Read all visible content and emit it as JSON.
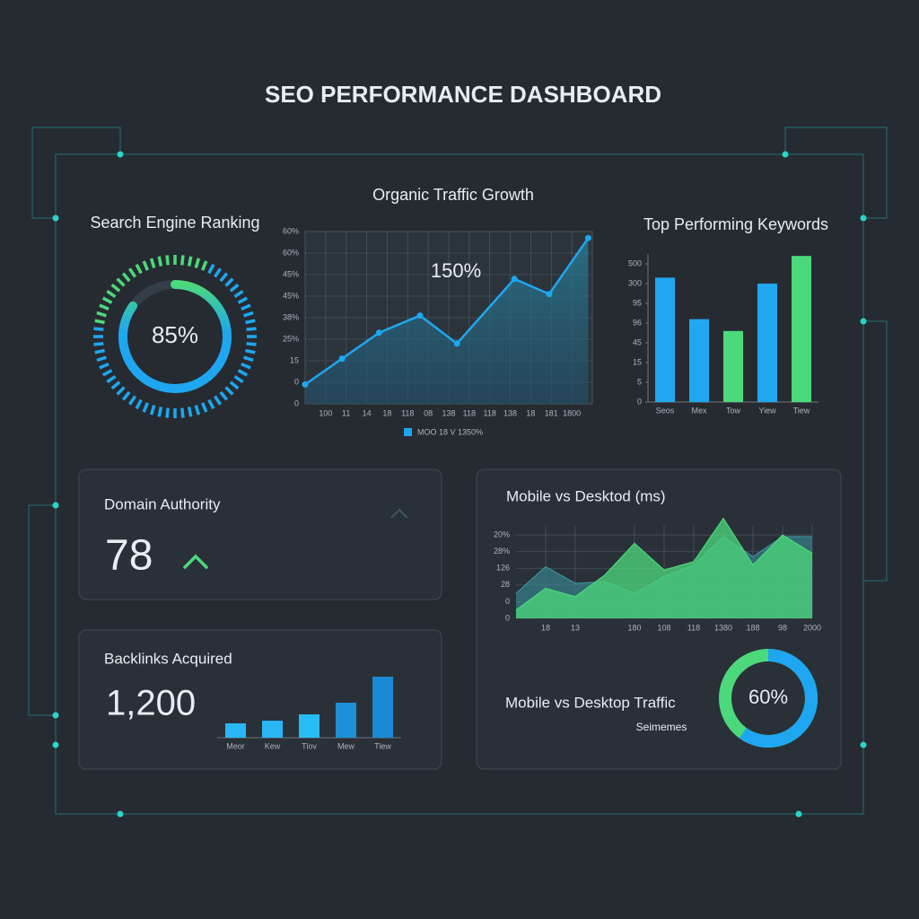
{
  "title": "SEO PERFORMANCE DASHBOARD",
  "chart_data": [
    {
      "type": "gauge",
      "title": "Search Engine Ranking",
      "value": 85,
      "value_label": "85%",
      "ylim": [
        0,
        100
      ],
      "color": "#1ea7f0",
      "accent_color": "#4cd97b"
    },
    {
      "type": "line",
      "title": "Organic Traffic Growth",
      "annotation": "150%",
      "legend": "MOO 18 V 1350%",
      "x": [
        0,
        1.8,
        3.6,
        5.6,
        7.4,
        10.2,
        11.9,
        13.8
      ],
      "values": [
        0.9,
        2.1,
        3.3,
        4.1,
        2.8,
        5.8,
        5.1,
        7.7
      ],
      "color": "#1ea7f0",
      "xlim": [
        0,
        14
      ],
      "xticks": [
        {
          "value": 1,
          "label": "100"
        },
        {
          "value": 2,
          "label": "11"
        },
        {
          "value": 3,
          "label": "14"
        },
        {
          "value": 4,
          "label": "18"
        },
        {
          "value": 5,
          "label": "118"
        },
        {
          "value": 6,
          "label": "08"
        },
        {
          "value": 7,
          "label": "138"
        },
        {
          "value": 8,
          "label": "118"
        },
        {
          "value": 9,
          "label": "118"
        },
        {
          "value": 10,
          "label": "138"
        },
        {
          "value": 11,
          "label": "18"
        },
        {
          "value": 12,
          "label": "181"
        },
        {
          "value": 13,
          "label": "1800"
        }
      ],
      "ylim": [
        0,
        8
      ],
      "yticks": [
        0,
        {
          "value": 1,
          "label": "0"
        },
        {
          "value": 2,
          "label": "15"
        },
        {
          "value": 3,
          "label": "25%"
        },
        {
          "value": 4,
          "label": "38%"
        },
        {
          "value": 5,
          "label": "45%"
        },
        {
          "value": 6,
          "label": "45%"
        },
        {
          "value": 7,
          "label": "60%"
        },
        {
          "value": 8,
          "label": "60%"
        }
      ],
      "grid": true
    },
    {
      "type": "bar",
      "title": "Top Performing Keywords",
      "categories": [
        "Seos",
        "Mex",
        "Tow",
        "Yiew",
        "Tiew"
      ],
      "values": [
        6.3,
        4.2,
        3.6,
        6.0,
        7.4
      ],
      "colors": [
        "#1fa8f0",
        "#1fa8f0",
        "#4cd97b",
        "#1fa8f0",
        "#4cd97b"
      ],
      "ylim": [
        0,
        7.5
      ],
      "yticks": [
        0,
        {
          "value": 1,
          "label": "5"
        },
        {
          "value": 2,
          "label": "15"
        },
        {
          "value": 3,
          "label": "45"
        },
        {
          "value": 4,
          "label": "96"
        },
        {
          "value": 5,
          "label": "95"
        },
        {
          "value": 6,
          "label": "300"
        },
        {
          "value": 7,
          "label": "500"
        }
      ]
    },
    {
      "type": "kpi",
      "title": "Domain Authority",
      "value": 78,
      "trend": "up",
      "color": "#1ea7f0"
    },
    {
      "type": "bar",
      "title": "Backlinks Acquired",
      "value": 1200,
      "value_label": "1,200",
      "categories": [
        "Meor",
        "Kew",
        "Tiov",
        "Mew",
        "Tiew"
      ],
      "values": [
        16,
        19,
        26,
        39,
        68
      ],
      "colors": [
        "#29b6f6",
        "#29b6f6",
        "#26bdf2",
        "#1e90d8",
        "#1a8ad4"
      ]
    },
    {
      "type": "area",
      "title": "Mobile vs Desktod (ms)",
      "x": [
        0,
        1,
        2,
        3,
        4,
        5,
        6,
        7,
        8,
        9,
        10
      ],
      "series": [
        {
          "color": "#3a8f9a",
          "values": [
            1.5,
            3.1,
            2.1,
            2.2,
            1.5,
            2.5,
            3.2,
            4.9,
            3.7,
            4.9,
            4.9
          ]
        },
        {
          "color": "#4cd97b",
          "values": [
            0.5,
            1.8,
            1.3,
            2.6,
            4.5,
            2.9,
            3.4,
            6.0,
            3.2,
            5.0,
            3.9
          ]
        }
      ],
      "xlim": [
        0,
        10
      ],
      "xticks": [
        {
          "value": 1,
          "label": "18"
        },
        {
          "value": 2,
          "label": "13"
        },
        {
          "value": 4,
          "label": "180"
        },
        {
          "value": 5,
          "label": "108"
        },
        {
          "value": 6,
          "label": "118"
        },
        {
          "value": 7,
          "label": "1380"
        },
        {
          "value": 8,
          "label": "188"
        },
        {
          "value": 9,
          "label": "98"
        },
        {
          "value": 10,
          "label": "2000"
        }
      ],
      "ylim": [
        0,
        5.6
      ],
      "yticks": [
        0,
        {
          "value": 1,
          "label": "0"
        },
        {
          "value": 2,
          "label": "28"
        },
        {
          "value": 3,
          "label": "126"
        },
        {
          "value": 4,
          "label": "28%"
        },
        {
          "value": 5,
          "label": "20%"
        }
      ],
      "grid": true
    },
    {
      "type": "donut",
      "title": "Mobile vs Desktop Traffic",
      "value": 60,
      "value_label": "60%",
      "legend": "Seimemes",
      "ylim": [
        0,
        100
      ],
      "color": "#1ea7f0",
      "track_color": "#4cd97b"
    }
  ]
}
